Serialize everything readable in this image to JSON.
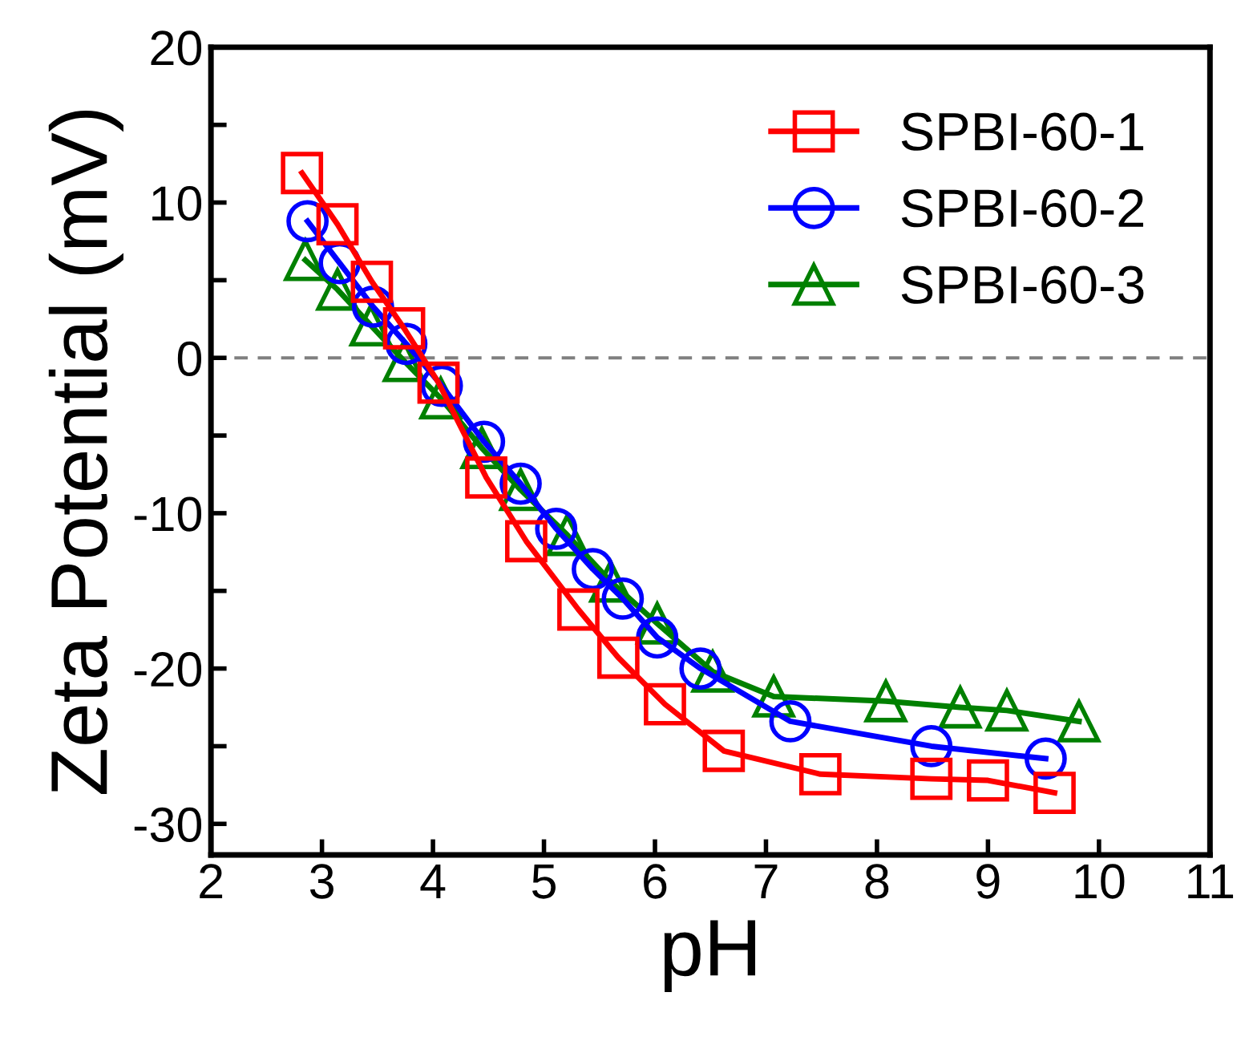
{
  "chart_data": {
    "type": "line",
    "xlabel": "pH",
    "ylabel": "Zeta Potential (mV)",
    "xlim": [
      2,
      11
    ],
    "xticks": [
      2,
      3,
      4,
      5,
      6,
      7,
      8,
      9,
      10,
      11
    ],
    "ylim": [
      -32,
      20
    ],
    "yticks": [
      {
        "value": -30,
        "label": "-30"
      },
      {
        "value": -25,
        "label": null
      },
      {
        "value": -20,
        "label": "-20"
      },
      {
        "value": -15,
        "label": null
      },
      {
        "value": -10,
        "label": "-10"
      },
      {
        "value": -5,
        "label": null
      },
      0,
      {
        "value": 5,
        "label": null
      },
      10,
      {
        "value": 15,
        "label": null
      },
      20
    ],
    "grid": false,
    "legend": "top right",
    "line_style": "solid",
    "ref_lines": [
      {
        "axis": "y",
        "value": 0,
        "color": "#808080",
        "line_style": "dashed"
      }
    ],
    "series": [
      {
        "name": "SPBI-60-1",
        "color": "#ff0000",
        "marker": "square",
        "x": [
          2.82,
          3.14,
          3.45,
          3.74,
          4.05,
          4.48,
          4.84,
          5.31,
          5.67,
          6.09,
          6.62,
          7.49,
          8.49,
          9.0,
          9.6
        ],
        "values": [
          11.9,
          8.6,
          4.9,
          1.9,
          -1.6,
          -7.7,
          -11.8,
          -16.2,
          -19.3,
          -22.3,
          -25.3,
          -26.8,
          -27.1,
          -27.2,
          -28.0
        ]
      },
      {
        "name": "SPBI-60-2",
        "color": "#0000ff",
        "marker": "circle",
        "x": [
          2.87,
          3.16,
          3.46,
          3.76,
          4.08,
          4.46,
          4.79,
          5.11,
          5.44,
          5.71,
          6.02,
          6.41,
          7.22,
          8.49,
          9.52
        ],
        "values": [
          8.8,
          6.1,
          3.3,
          0.9,
          -1.8,
          -5.4,
          -8.1,
          -11.0,
          -13.6,
          -15.5,
          -18.0,
          -20.0,
          -23.4,
          -25.0,
          -25.8
        ]
      },
      {
        "name": "SPBI-60-3",
        "color": "#008000",
        "marker": "triangle",
        "x": [
          2.85,
          3.14,
          3.44,
          3.74,
          4.07,
          4.44,
          4.79,
          5.21,
          5.6,
          6.02,
          6.52,
          7.07,
          8.08,
          8.75,
          9.17,
          9.82
        ],
        "values": [
          6.3,
          4.4,
          2.1,
          -0.2,
          -2.6,
          -5.8,
          -8.5,
          -11.4,
          -14.4,
          -17.1,
          -20.2,
          -21.8,
          -22.1,
          -22.5,
          -22.7,
          -23.4
        ]
      }
    ]
  }
}
